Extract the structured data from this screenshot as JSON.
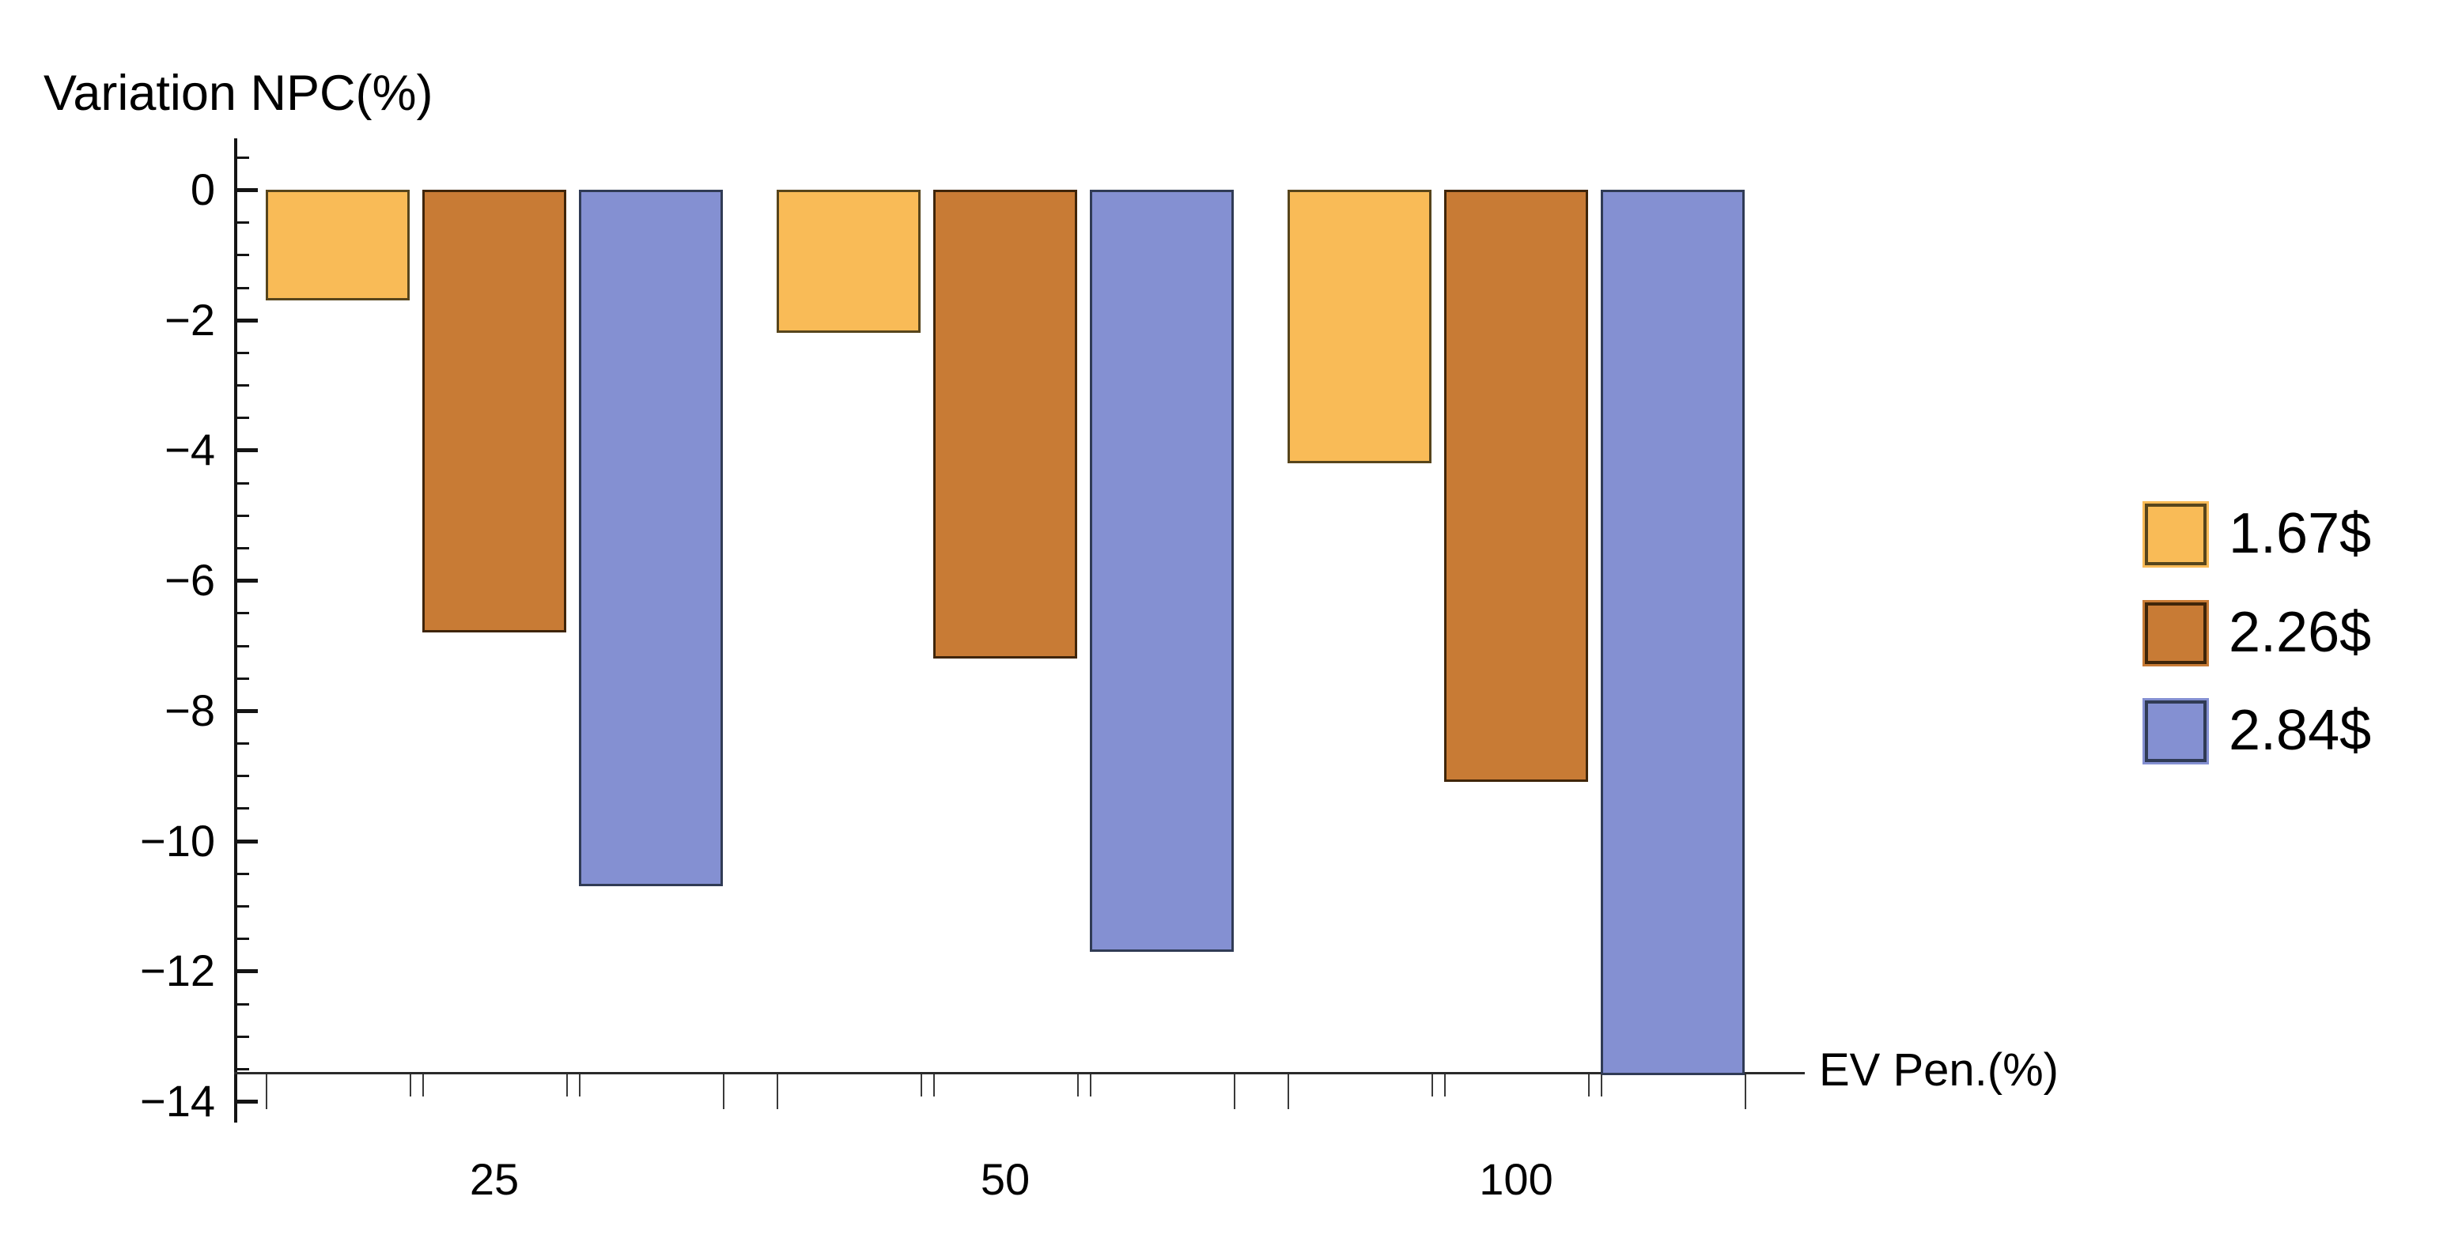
{
  "title": "Variation NPC(%)",
  "chart_data": {
    "type": "bar",
    "title": "Variation NPC(%)",
    "xlabel": "EV Pen.(%)",
    "ylabel": "Variation NPC(%)",
    "categories": [
      "25",
      "50",
      "100"
    ],
    "series": [
      {
        "name": "1.67$",
        "fill": "#F9BB57",
        "edge": "#57451C",
        "values": [
          -1.7,
          -2.2,
          -4.2
        ]
      },
      {
        "name": "2.26$",
        "fill": "#C87B35",
        "edge": "#3F2509",
        "values": [
          -6.8,
          -7.2,
          -9.1
        ]
      },
      {
        "name": "2.84$",
        "fill": "#8490D2",
        "edge": "#303B55",
        "values": [
          -10.7,
          -11.7,
          -13.6
        ]
      }
    ],
    "ylim": [
      -14,
      0.5
    ],
    "y_major_tick_values": [
      0,
      -2,
      -4,
      -6,
      -8,
      -10,
      -12,
      -14
    ],
    "y_major_tick_labels": [
      "0",
      "−2",
      "−4",
      "−6",
      "−8",
      "−10",
      "−12",
      "−14"
    ],
    "y_minor_tick_step": 0.5,
    "grid": false,
    "legend_position": "right",
    "axis_color": "#141414",
    "background": "#FFFFFF"
  },
  "legend": {
    "items": [
      {
        "label": "1.67$"
      },
      {
        "label": "2.26$"
      },
      {
        "label": "2.84$"
      }
    ]
  }
}
